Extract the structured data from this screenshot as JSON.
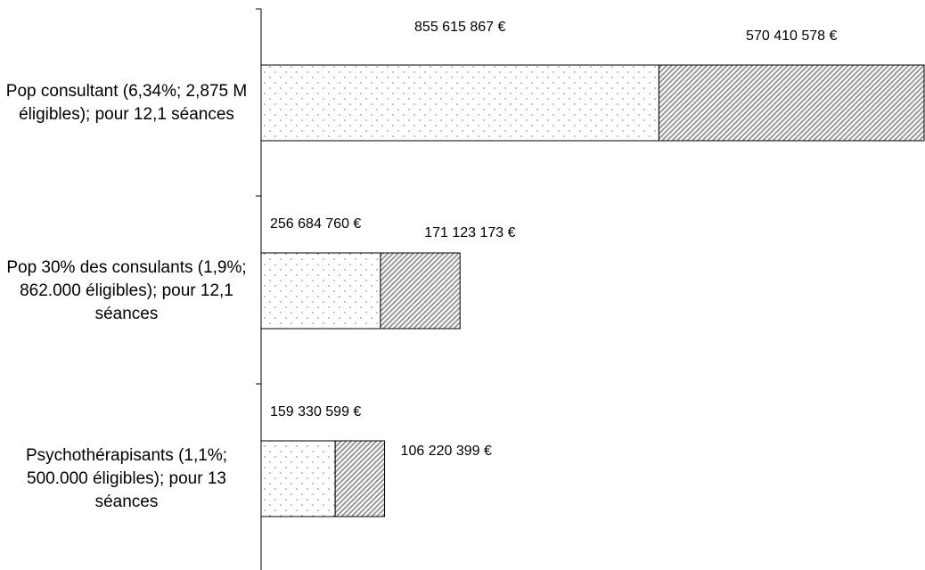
{
  "chart_data": {
    "type": "stacked-bar-horizontal",
    "categories": [
      "Pop consultant (6,34%; 2,875 M éligibles); pour 12,1 séances",
      "Pop 30% des consulants (1,9%; 862.000 éligibles); pour 12,1 séances",
      "Psychothérapisants (1,1%; 500.000 éligibles); pour 13 séances"
    ],
    "series": [
      {
        "color": "#7070e0",
        "pattern": "dots",
        "values": [
          855615867,
          256684760,
          159330599
        ],
        "value_labels": [
          "855 615 867 €",
          "256 684 760 €",
          "159 330 599 €"
        ]
      },
      {
        "color": "#9a9a9a",
        "pattern": "hatch",
        "values": [
          570410578,
          171123173,
          106220399
        ],
        "value_labels": [
          "570 410 578 €",
          "171 123 173 €",
          "106 220 399 €"
        ]
      }
    ],
    "xlim": [
      0,
      1426000000
    ]
  }
}
